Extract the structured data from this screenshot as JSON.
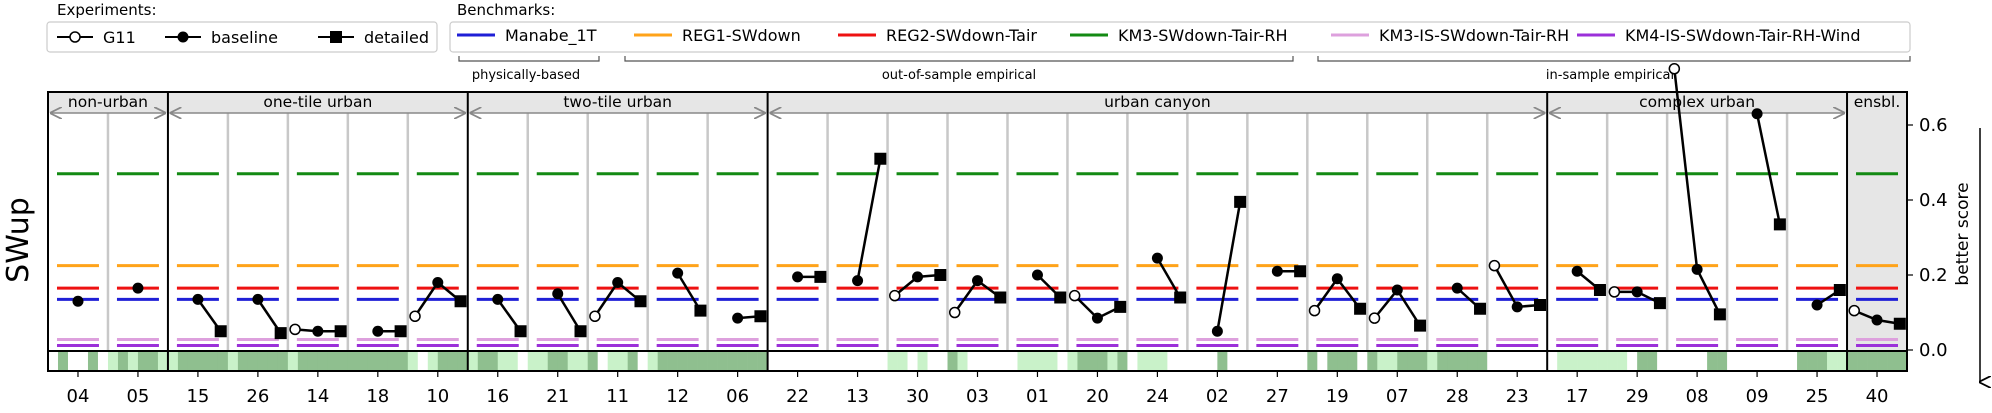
{
  "chart_data": {
    "type": "line",
    "ylabel": "SWup",
    "right_label": "better score",
    "ylim": [
      0,
      0.75
    ],
    "yticks": [
      0.0,
      0.2,
      0.4,
      0.6
    ],
    "ytick_labels": [
      "0.0",
      "0.2",
      "0.4",
      "0.6"
    ],
    "experiments_title": "Experiments:",
    "experiments": [
      {
        "name": "G11",
        "marker": "open-circle"
      },
      {
        "name": "baseline",
        "marker": "filled-circle"
      },
      {
        "name": "detailed",
        "marker": "square"
      }
    ],
    "benchmarks_title": "Benchmarks:",
    "benchmarks": [
      {
        "name": "Manabe_1T",
        "color": "#1f1fd6",
        "value": 0.135
      },
      {
        "name": "REG1-SWdown",
        "color": "#ffa31a",
        "value": 0.225
      },
      {
        "name": "REG2-SWdown-Tair",
        "color": "#ee1111",
        "value": 0.165
      },
      {
        "name": "KM3-SWdown-Tair-RH",
        "color": "#138a13",
        "value": 0.47
      },
      {
        "name": "KM3-IS-SWdown-Tair-RH",
        "color": "#dda0dd",
        "value": 0.028
      },
      {
        "name": "KM4-IS-SWdown-Tair-RH-Wind",
        "color": "#9b30d9",
        "value": 0.012
      }
    ],
    "benchmark_groups": [
      "physically-based",
      "out-of-sample empirical",
      "in-sample empirical"
    ],
    "groups": [
      {
        "label": "non-urban",
        "start": 0,
        "end": 1
      },
      {
        "label": "one-tile urban",
        "start": 2,
        "end": 6
      },
      {
        "label": "two-tile urban",
        "start": 7,
        "end": 11
      },
      {
        "label": "urban canyon",
        "start": 12,
        "end": 24
      },
      {
        "label": "complex urban",
        "start": 25,
        "end": 29
      },
      {
        "label": "ensbl.",
        "start": 30,
        "end": 30
      }
    ],
    "sites": [
      {
        "label": "04",
        "g11": null,
        "baseline": 0.13,
        "detailed": null
      },
      {
        "label": "05",
        "g11": null,
        "baseline": 0.165,
        "detailed": null
      },
      {
        "label": "15",
        "g11": null,
        "baseline": 0.135,
        "detailed": 0.05
      },
      {
        "label": "26",
        "g11": null,
        "baseline": 0.135,
        "detailed": 0.045
      },
      {
        "label": "14",
        "g11": 0.055,
        "baseline": 0.05,
        "detailed": 0.05
      },
      {
        "label": "18",
        "g11": null,
        "baseline": 0.05,
        "detailed": 0.05
      },
      {
        "label": "10",
        "g11": 0.09,
        "baseline": 0.18,
        "detailed": 0.13
      },
      {
        "label": "16",
        "g11": null,
        "baseline": 0.135,
        "detailed": 0.05
      },
      {
        "label": "21",
        "g11": null,
        "baseline": 0.15,
        "detailed": 0.05
      },
      {
        "label": "11",
        "g11": 0.09,
        "baseline": 0.18,
        "detailed": 0.13
      },
      {
        "label": "12",
        "g11": null,
        "baseline": 0.205,
        "detailed": 0.105
      },
      {
        "label": "06",
        "g11": null,
        "baseline": 0.085,
        "detailed": 0.09
      },
      {
        "label": "22",
        "g11": null,
        "baseline": 0.195,
        "detailed": 0.195
      },
      {
        "label": "13",
        "g11": null,
        "baseline": 0.185,
        "detailed": 0.51
      },
      {
        "label": "30",
        "g11": 0.145,
        "baseline": 0.195,
        "detailed": 0.2
      },
      {
        "label": "03",
        "g11": 0.1,
        "baseline": 0.185,
        "detailed": 0.14
      },
      {
        "label": "01",
        "g11": null,
        "baseline": 0.2,
        "detailed": 0.14
      },
      {
        "label": "20",
        "g11": 0.145,
        "baseline": 0.085,
        "detailed": 0.115
      },
      {
        "label": "24",
        "g11": null,
        "baseline": 0.245,
        "detailed": 0.14
      },
      {
        "label": "02",
        "g11": null,
        "baseline": 0.05,
        "detailed": 0.395
      },
      {
        "label": "27",
        "g11": null,
        "baseline": 0.21,
        "detailed": 0.21
      },
      {
        "label": "19",
        "g11": 0.105,
        "baseline": 0.19,
        "detailed": 0.11
      },
      {
        "label": "07",
        "g11": 0.085,
        "baseline": 0.16,
        "detailed": 0.065
      },
      {
        "label": "28",
        "g11": null,
        "baseline": 0.165,
        "detailed": 0.11
      },
      {
        "label": "23",
        "g11": 0.225,
        "baseline": 0.115,
        "detailed": 0.12
      },
      {
        "label": "17",
        "g11": null,
        "baseline": 0.21,
        "detailed": 0.16
      },
      {
        "label": "29",
        "g11": 0.155,
        "baseline": 0.155,
        "detailed": 0.125
      },
      {
        "label": "08",
        "g11": 0.75,
        "baseline": 0.215,
        "detailed": 0.095
      },
      {
        "label": "09",
        "g11": null,
        "baseline": 0.63,
        "detailed": 0.335
      },
      {
        "label": "25",
        "g11": null,
        "baseline": 0.12,
        "detailed": 0.16
      },
      {
        "label": "40",
        "g11": 0.105,
        "baseline": 0.08,
        "detailed": 0.07
      }
    ],
    "site_strip": [
      [
        0,
        0.7,
        0,
        0,
        0.7,
        0
      ],
      [
        0.3,
        0.9,
        0.1,
        0.9,
        0.9,
        0.1
      ],
      [
        0.3,
        0.9,
        0.9,
        0.9,
        0.9,
        0.9
      ],
      [
        0.3,
        0.9,
        0.9,
        0.9,
        0.9,
        0.9
      ],
      [
        0.3,
        0.9,
        0.9,
        0.9,
        0.9,
        0.9
      ],
      [
        0.9,
        0.9,
        0.9,
        0.9,
        0.9,
        0.9
      ],
      [
        0.3,
        0,
        0.3,
        0.9,
        0.9,
        0.9
      ],
      [
        0.3,
        0.9,
        0.9,
        0.3,
        0.3,
        0
      ],
      [
        0.3,
        0.3,
        0.9,
        0.9,
        0.3,
        0.3
      ],
      [
        0.9,
        0,
        0.3,
        0.3,
        0.9,
        0
      ],
      [
        0.3,
        0.9,
        0.9,
        0.9,
        0.9,
        0.9
      ],
      [
        0.9,
        0.9,
        0.9,
        0.9,
        0.9,
        0.9
      ],
      [
        0,
        0,
        0,
        0,
        0,
        0
      ],
      [
        0,
        0,
        0,
        0,
        0,
        0
      ],
      [
        0.3,
        0.3,
        0,
        0.3,
        0,
        0
      ],
      [
        0.9,
        0.3,
        0,
        0,
        0,
        0
      ],
      [
        0,
        0.3,
        0.3,
        0.3,
        0.3,
        0
      ],
      [
        0.3,
        0.9,
        0.9,
        0.9,
        0.3,
        0.9
      ],
      [
        0,
        0.3,
        0.3,
        0.3,
        0,
        0
      ],
      [
        0,
        0,
        0,
        0.9,
        0,
        0
      ],
      [
        0,
        0,
        0,
        0,
        0,
        0
      ],
      [
        0.9,
        0,
        0.9,
        0.9,
        0.9,
        0
      ],
      [
        0.9,
        0.3,
        0.3,
        0.9,
        0.9,
        0.9
      ],
      [
        0.3,
        0.9,
        0.9,
        0.9,
        0.9,
        0.9
      ],
      [
        0,
        0,
        0,
        0,
        0,
        0
      ],
      [
        0,
        0.3,
        0.3,
        0.3,
        0.3,
        0.3
      ],
      [
        0.3,
        0.3,
        0,
        0.9,
        0.9,
        0
      ],
      [
        0,
        0,
        0,
        0,
        0.9,
        0.9
      ],
      [
        0,
        0,
        0,
        0,
        0,
        0
      ],
      [
        0,
        0.9,
        0.9,
        0.9,
        0.3,
        0.3
      ],
      [
        0.9,
        0.9,
        0.9,
        0.9,
        0.9,
        0.9
      ]
    ],
    "strip_colors": {
      "light": "#c9f2c9",
      "dark": "#8fbf8f"
    }
  }
}
